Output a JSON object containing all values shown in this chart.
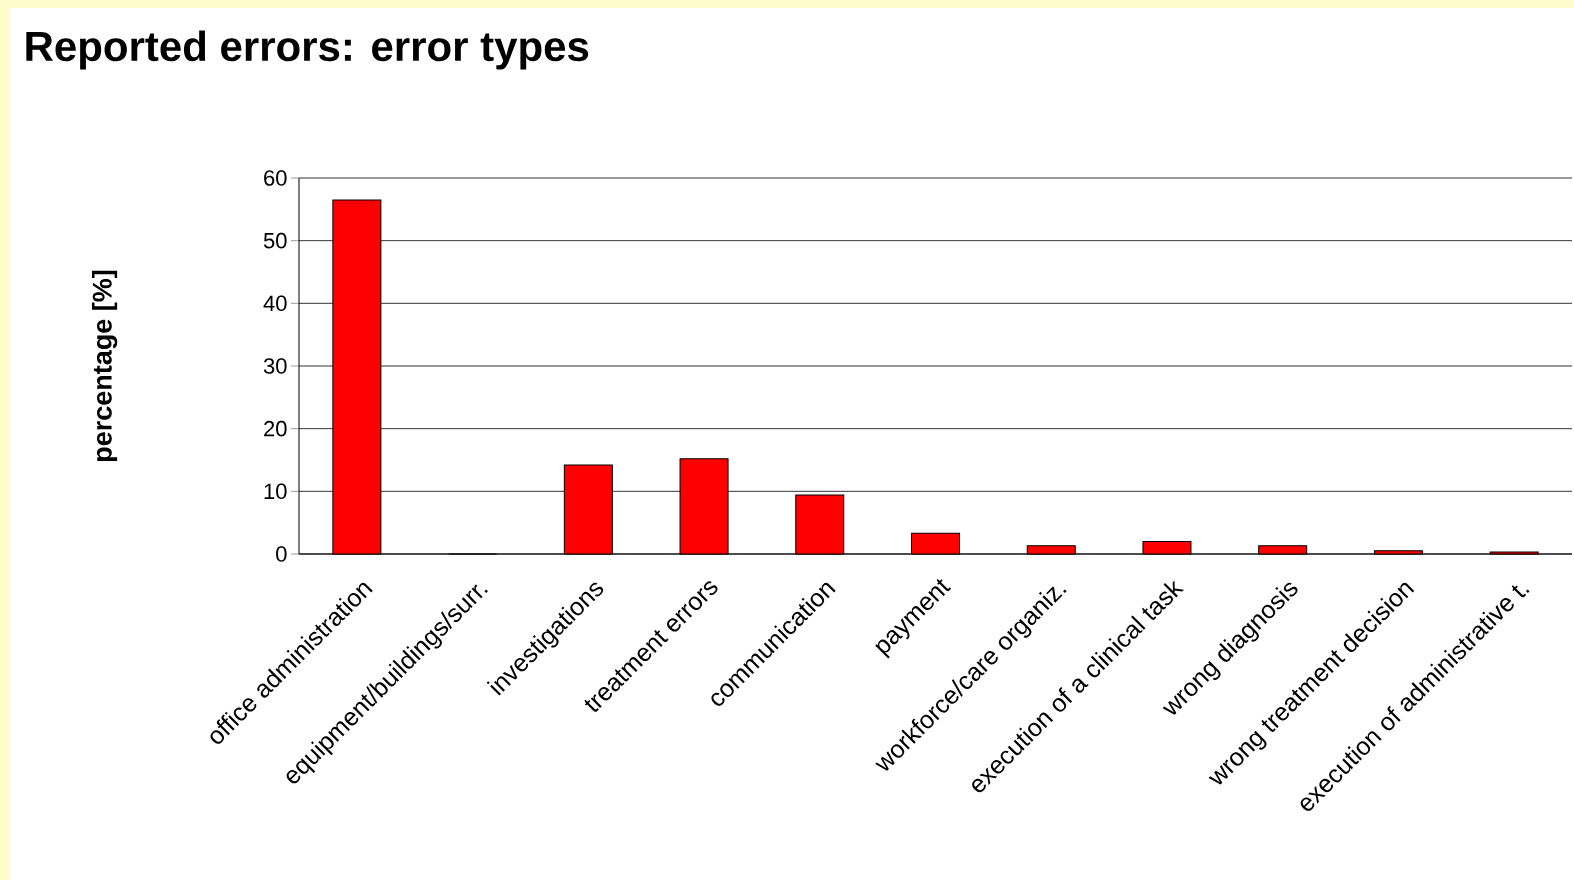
{
  "chart_data": {
    "type": "bar",
    "title": "Reported errors: error types",
    "ylabel": "percentage [%]",
    "categories": [
      "office administration",
      "equipment/buildings/surr.",
      "investigations",
      "treatment errors",
      "communication",
      "payment",
      "workforce/care organiz.",
      "execution of a clinical task",
      "wrong diagnosis",
      "wrong treatment decision",
      "execution of administrative t."
    ],
    "values": [
      56.5,
      0,
      14.2,
      15.2,
      9.4,
      3.3,
      1.3,
      2.0,
      1.3,
      0.5,
      0.3
    ],
    "color": "#ff0000",
    "ylim": [
      0,
      60
    ],
    "yticks": [
      0,
      10,
      20,
      30,
      40,
      50,
      60
    ],
    "grid": "y"
  }
}
